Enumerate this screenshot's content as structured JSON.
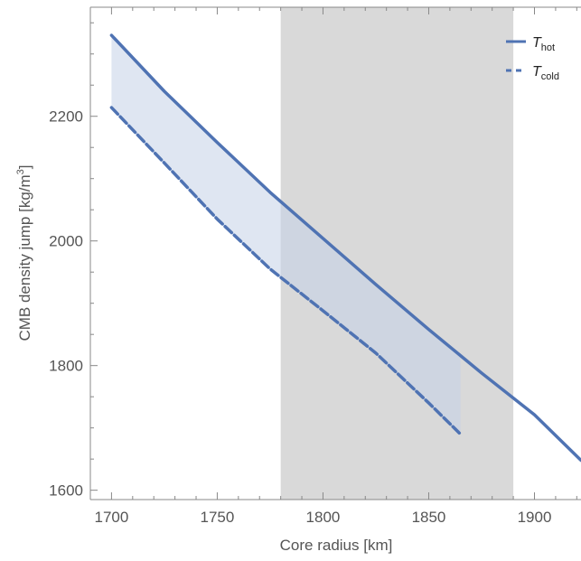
{
  "chart_data": {
    "type": "line",
    "xlabel": "Core radius [km]",
    "ylabel_main": "CMB density jump [kg/m",
    "ylabel_sup": "3",
    "ylabel_end": "]",
    "xlim": [
      1690,
      1922
    ],
    "ylim": [
      1585,
      2375
    ],
    "x_ticks": [
      1700,
      1750,
      1800,
      1850,
      1900
    ],
    "y_ticks": [
      1600,
      1800,
      2000,
      2200
    ],
    "x_tick_labels": [
      "1700",
      "1750",
      "1800",
      "1850",
      "1900"
    ],
    "y_tick_labels": [
      "1600",
      "1800",
      "2000",
      "2200"
    ],
    "shaded_region": {
      "x_range": [
        1780,
        1890
      ],
      "color": "#d9d9d9"
    },
    "band_fill_color": "#c5d1e8",
    "series": [
      {
        "name": "hot",
        "legend_main": "T",
        "legend_sub": "hot",
        "style": "solid",
        "color": "#4f73b3",
        "x": [
          1700,
          1725,
          1750,
          1775,
          1800,
          1825,
          1850,
          1875,
          1900,
          1922
        ],
        "y": [
          2330,
          2240,
          2158,
          2078,
          2004,
          1930,
          1858,
          1788,
          1721,
          1648
        ]
      },
      {
        "name": "cold",
        "legend_main": "T",
        "legend_sub": "cold",
        "style": "dashed",
        "color": "#4f73b3",
        "x": [
          1700,
          1725,
          1750,
          1775,
          1800,
          1825,
          1850,
          1865
        ],
        "y": [
          2214,
          2125,
          2035,
          1955,
          1888,
          1820,
          1740,
          1690
        ]
      }
    ]
  }
}
